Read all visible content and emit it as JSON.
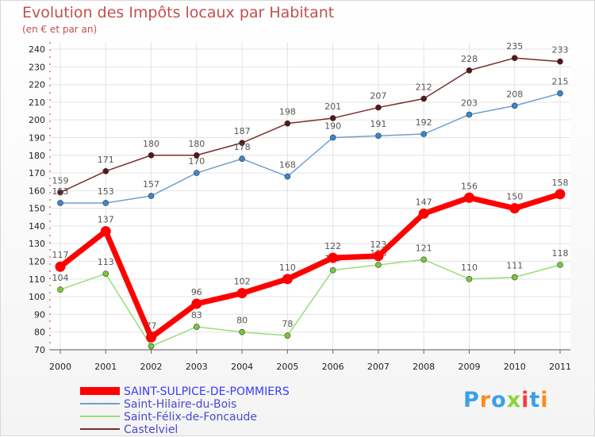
{
  "chart_data": {
    "type": "line",
    "title": "Evolution des Impôts locaux par Habitant",
    "subtitle": "(en € et par an)",
    "x": [
      "2000",
      "2001",
      "2002",
      "2003",
      "2004",
      "2005",
      "2006",
      "2007",
      "2008",
      "2009",
      "2010",
      "2011"
    ],
    "ylim": [
      70,
      240
    ],
    "yticks": [
      70,
      80,
      90,
      100,
      110,
      120,
      130,
      140,
      150,
      160,
      170,
      180,
      190,
      200,
      210,
      220,
      230,
      240
    ],
    "grid": true,
    "legend_position": "bottom-left",
    "series": [
      {
        "name": "SAINT-SULPICE-DE-POMMIERS",
        "color": "#ff0000",
        "values": [
          117,
          137,
          77,
          96,
          102,
          110,
          122,
          123,
          147,
          156,
          150,
          158
        ]
      },
      {
        "name": "Saint-Hilaire-du-Bois",
        "color": "#6fa0d0",
        "point_color": "#3a87d0",
        "values": [
          153,
          153,
          157,
          170,
          178,
          168,
          190,
          191,
          192,
          203,
          208,
          215
        ]
      },
      {
        "name": "Saint-Félix-de-Foncaude",
        "color": "#99dd77",
        "point_color": "#77cc33",
        "values": [
          104,
          113,
          72,
          83,
          80,
          78,
          115,
          118,
          121,
          110,
          111,
          118
        ]
      },
      {
        "name": "Castelviel",
        "color": "#7a2c2c",
        "point_color": "#5a1515",
        "values": [
          159,
          171,
          180,
          180,
          187,
          198,
          201,
          207,
          212,
          228,
          235,
          233
        ]
      }
    ]
  },
  "logo": {
    "letters": [
      {
        "ch": "P",
        "color": "#3aa0e8"
      },
      {
        "ch": "r",
        "color": "#ff8a1c"
      },
      {
        "ch": "o",
        "color": "#3aa0e8"
      },
      {
        "ch": "x",
        "color": "#8bd43a"
      },
      {
        "ch": "i",
        "color": "#ff3a3a"
      },
      {
        "ch": "t",
        "color": "#3aa0e8"
      },
      {
        "ch": "i",
        "color": "#ff8a1c"
      }
    ]
  }
}
